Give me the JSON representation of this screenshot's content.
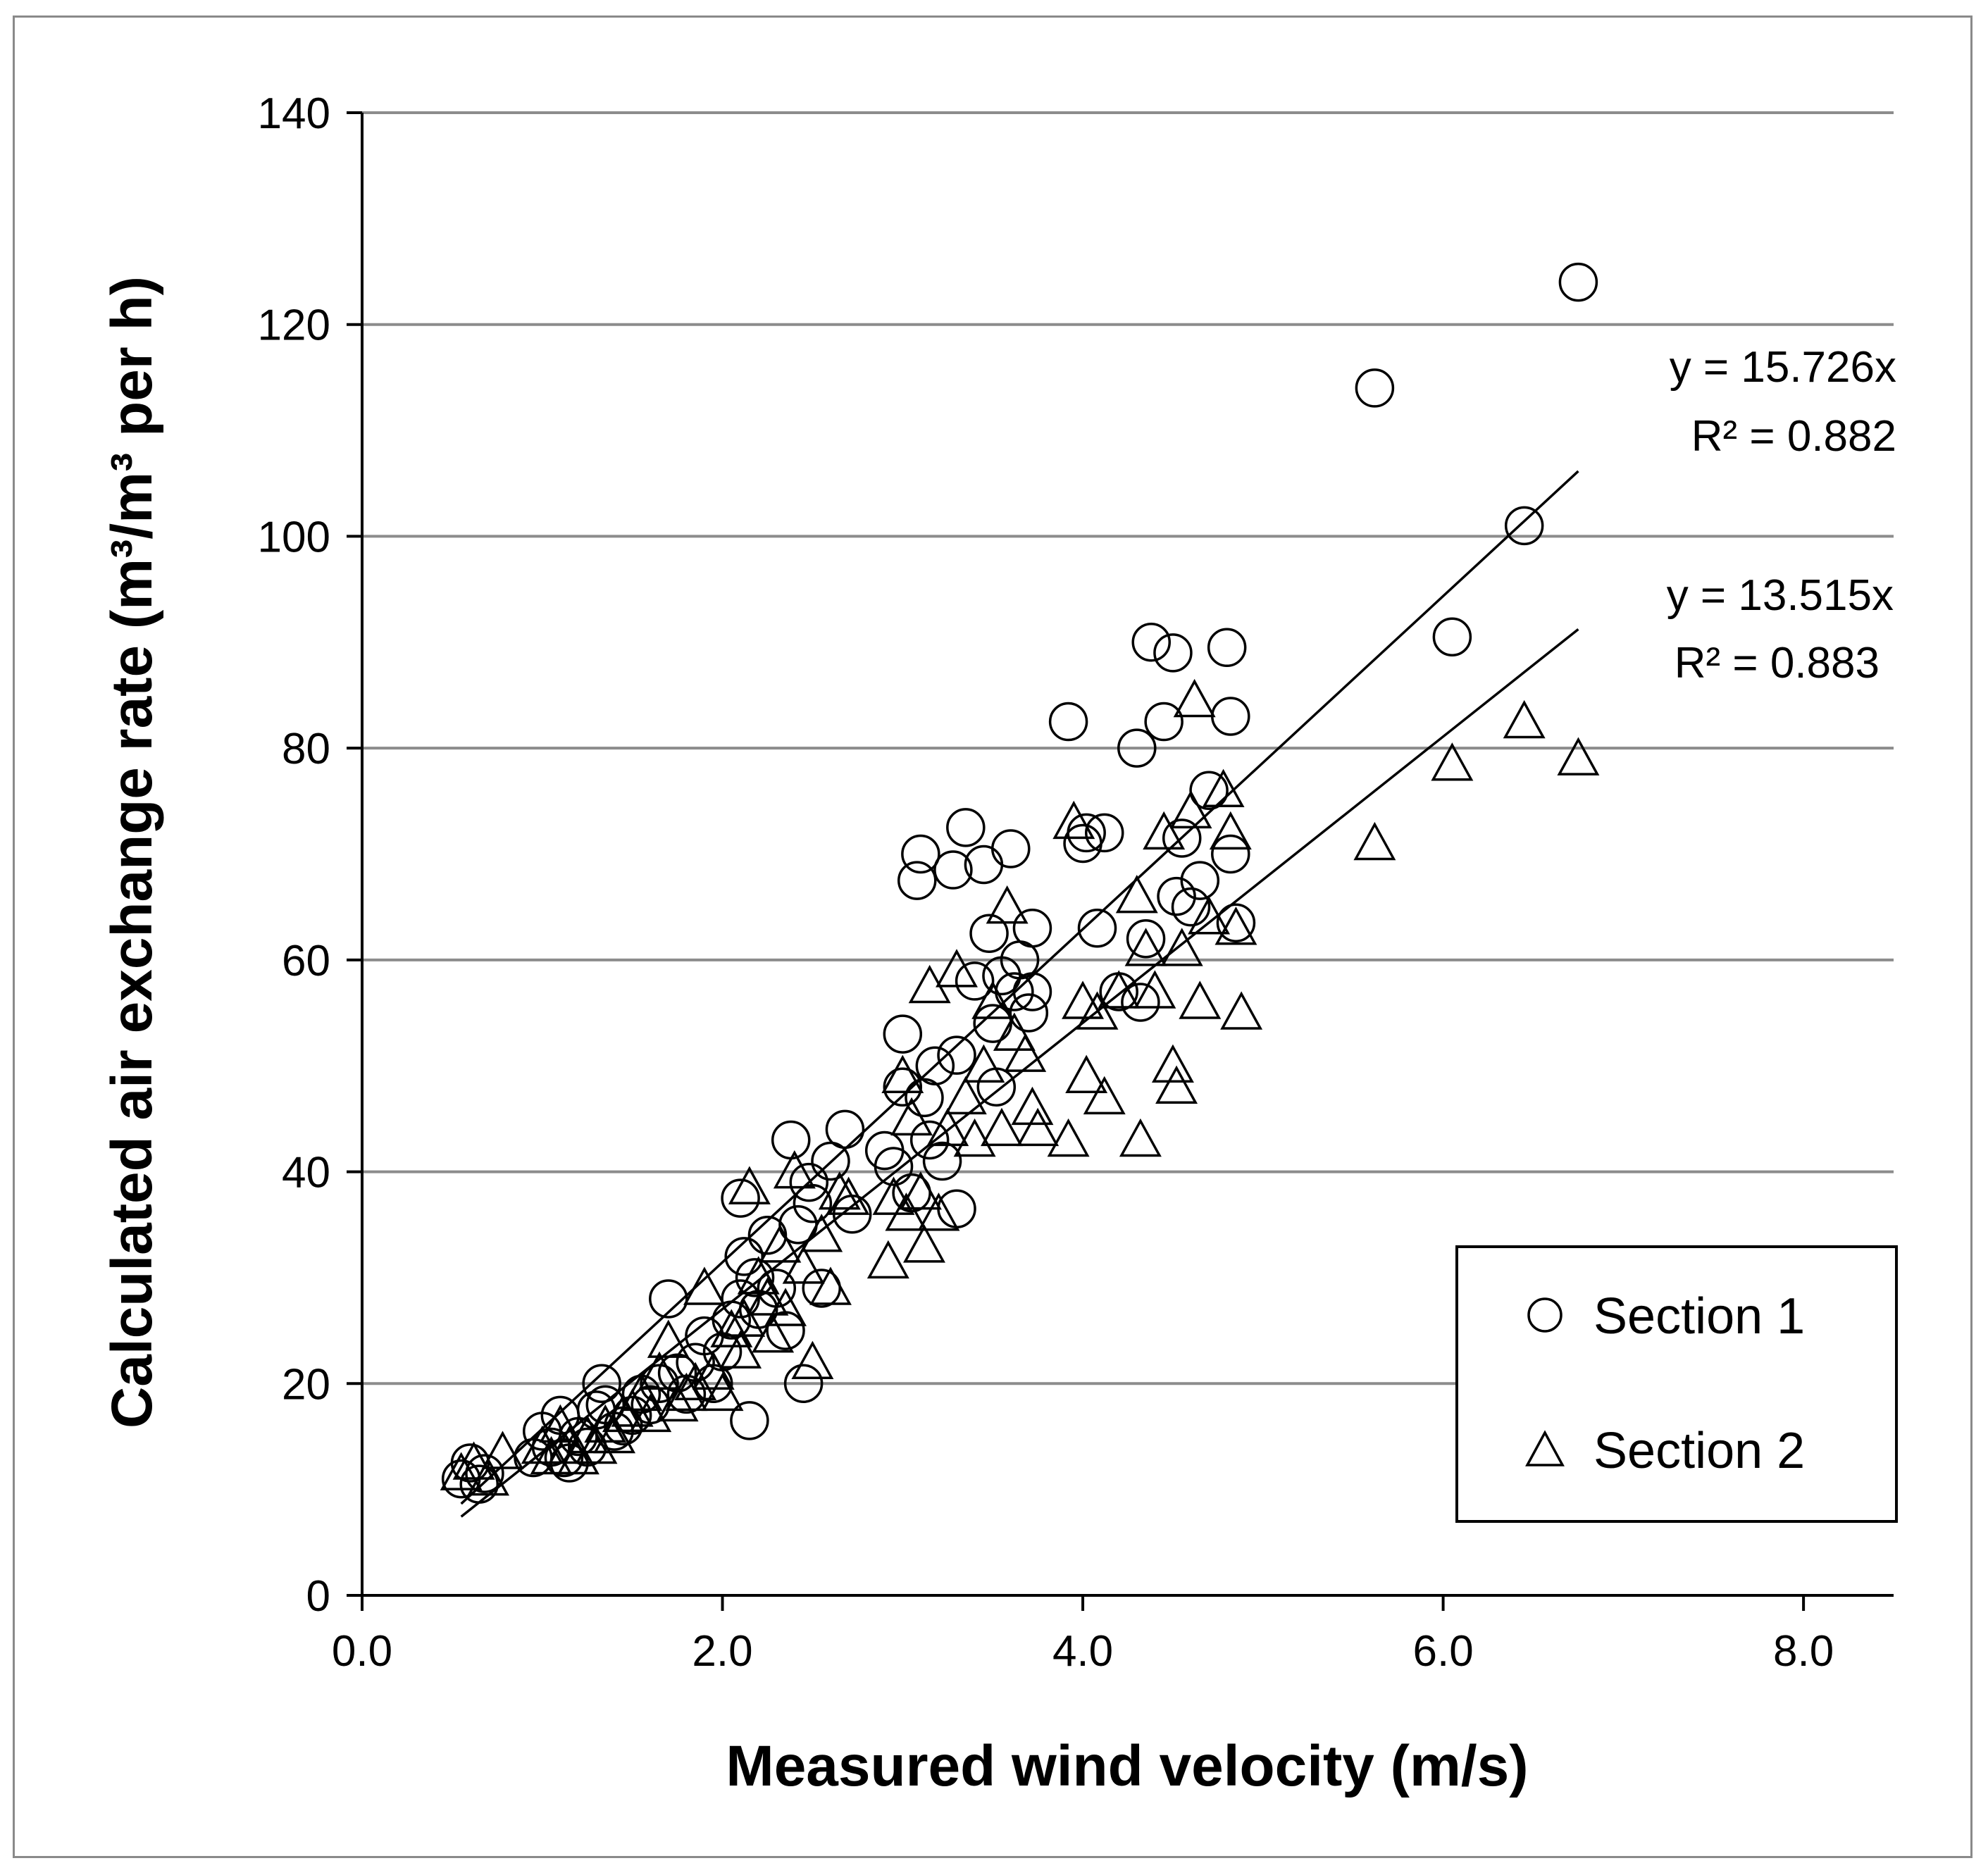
{
  "chart_data": {
    "type": "scatter",
    "title": "",
    "xlabel": "Measured wind velocity (m/s)",
    "ylabel": "Calculated air exchange rate (m³/m³ per h)",
    "xlim": [
      0,
      8.5
    ],
    "ylim": [
      0,
      140
    ],
    "x_ticks": [
      0,
      2,
      4,
      6,
      8
    ],
    "x_tick_labels": [
      "0.0",
      "2.0",
      "4.0",
      "6.0",
      "8.0"
    ],
    "y_ticks": [
      0,
      20,
      40,
      60,
      80,
      100,
      120,
      140
    ],
    "y_tick_labels": [
      "0",
      "20",
      "40",
      "60",
      "80",
      "100",
      "120",
      "140"
    ],
    "grid": "horizontal",
    "legend_position": "bottom-right",
    "series": [
      {
        "name": "Section 1",
        "marker": "circle",
        "trendline": {
          "slope": 15.726,
          "x_range": [
            0.55,
            6.75
          ],
          "equation": "y = 15.726x",
          "r2": "R² = 0.882"
        },
        "points": [
          [
            0.55,
            11
          ],
          [
            0.6,
            12.5
          ],
          [
            0.65,
            10.5
          ],
          [
            0.68,
            11.5
          ],
          [
            0.95,
            13
          ],
          [
            1.0,
            15.5
          ],
          [
            1.05,
            14
          ],
          [
            1.1,
            17
          ],
          [
            1.12,
            13
          ],
          [
            1.15,
            12.5
          ],
          [
            1.2,
            15
          ],
          [
            1.25,
            14
          ],
          [
            1.3,
            17.5
          ],
          [
            1.33,
            20
          ],
          [
            1.35,
            18
          ],
          [
            1.4,
            15.5
          ],
          [
            1.45,
            16
          ],
          [
            1.5,
            17
          ],
          [
            1.55,
            19
          ],
          [
            1.6,
            18
          ],
          [
            1.65,
            20
          ],
          [
            1.7,
            28
          ],
          [
            1.75,
            21
          ],
          [
            1.8,
            19
          ],
          [
            1.85,
            22
          ],
          [
            1.9,
            24.5
          ],
          [
            1.95,
            20
          ],
          [
            2.0,
            23
          ],
          [
            2.05,
            26
          ],
          [
            2.1,
            28
          ],
          [
            2.1,
            37.5
          ],
          [
            2.12,
            32
          ],
          [
            2.15,
            16.5
          ],
          [
            2.18,
            30
          ],
          [
            2.2,
            27
          ],
          [
            2.25,
            34
          ],
          [
            2.3,
            29
          ],
          [
            2.35,
            25
          ],
          [
            2.38,
            43
          ],
          [
            2.42,
            35
          ],
          [
            2.45,
            20
          ],
          [
            2.48,
            39
          ],
          [
            2.5,
            37
          ],
          [
            2.55,
            29
          ],
          [
            2.6,
            41
          ],
          [
            2.68,
            44
          ],
          [
            2.72,
            36
          ],
          [
            2.9,
            42
          ],
          [
            2.95,
            40.5
          ],
          [
            3.0,
            48
          ],
          [
            3.0,
            53
          ],
          [
            3.05,
            38
          ],
          [
            3.08,
            67.5
          ],
          [
            3.1,
            70
          ],
          [
            3.12,
            47
          ],
          [
            3.15,
            43
          ],
          [
            3.18,
            50
          ],
          [
            3.22,
            41
          ],
          [
            3.28,
            68.5
          ],
          [
            3.3,
            51
          ],
          [
            3.3,
            36.5
          ],
          [
            3.35,
            72.5
          ],
          [
            3.4,
            58
          ],
          [
            3.45,
            69
          ],
          [
            3.48,
            62.5
          ],
          [
            3.5,
            54
          ],
          [
            3.52,
            48
          ],
          [
            3.55,
            58.5
          ],
          [
            3.6,
            70.5
          ],
          [
            3.62,
            57
          ],
          [
            3.65,
            60
          ],
          [
            3.7,
            55
          ],
          [
            3.72,
            63
          ],
          [
            3.72,
            57
          ],
          [
            3.92,
            82.5
          ],
          [
            4.0,
            71
          ],
          [
            4.02,
            72
          ],
          [
            4.08,
            63
          ],
          [
            4.12,
            72
          ],
          [
            4.2,
            57
          ],
          [
            4.3,
            80
          ],
          [
            4.32,
            56
          ],
          [
            4.35,
            62
          ],
          [
            4.38,
            90
          ],
          [
            4.45,
            82.5
          ],
          [
            4.5,
            89
          ],
          [
            4.52,
            66
          ],
          [
            4.55,
            71.5
          ],
          [
            4.6,
            65
          ],
          [
            4.65,
            67.5
          ],
          [
            4.7,
            76
          ],
          [
            4.8,
            89.5
          ],
          [
            4.82,
            83
          ],
          [
            4.82,
            70
          ],
          [
            4.85,
            63.5
          ],
          [
            5.62,
            114
          ],
          [
            6.05,
            90.5
          ],
          [
            6.45,
            101
          ],
          [
            6.75,
            124
          ]
        ]
      },
      {
        "name": "Section 2",
        "marker": "triangle",
        "trendline": {
          "slope": 13.515,
          "x_range": [
            0.55,
            6.75
          ],
          "equation": "y = 13.515x",
          "r2": "R² = 0.883"
        },
        "points": [
          [
            0.55,
            11.5
          ],
          [
            0.62,
            12.5
          ],
          [
            0.7,
            11
          ],
          [
            0.78,
            13.5
          ],
          [
            1.0,
            14
          ],
          [
            1.05,
            13
          ],
          [
            1.1,
            16
          ],
          [
            1.15,
            14
          ],
          [
            1.2,
            13
          ],
          [
            1.25,
            15
          ],
          [
            1.3,
            14
          ],
          [
            1.35,
            16
          ],
          [
            1.4,
            15
          ],
          [
            1.45,
            17
          ],
          [
            1.5,
            17.5
          ],
          [
            1.55,
            19
          ],
          [
            1.6,
            17
          ],
          [
            1.65,
            21
          ],
          [
            1.7,
            24
          ],
          [
            1.75,
            18
          ],
          [
            1.8,
            19
          ],
          [
            1.85,
            20
          ],
          [
            1.9,
            29
          ],
          [
            1.95,
            21
          ],
          [
            2.0,
            19
          ],
          [
            2.05,
            25
          ],
          [
            2.1,
            23
          ],
          [
            2.12,
            26
          ],
          [
            2.15,
            38.5
          ],
          [
            2.2,
            30
          ],
          [
            2.25,
            28
          ],
          [
            2.28,
            24.5
          ],
          [
            2.32,
            33
          ],
          [
            2.35,
            27
          ],
          [
            2.4,
            40
          ],
          [
            2.45,
            31
          ],
          [
            2.5,
            22
          ],
          [
            2.55,
            34
          ],
          [
            2.6,
            29
          ],
          [
            2.65,
            38
          ],
          [
            2.7,
            37.5
          ],
          [
            2.92,
            31.5
          ],
          [
            2.95,
            37.5
          ],
          [
            3.0,
            49
          ],
          [
            3.02,
            36
          ],
          [
            3.05,
            45
          ],
          [
            3.1,
            38
          ],
          [
            3.12,
            33
          ],
          [
            3.15,
            57.5
          ],
          [
            3.2,
            36
          ],
          [
            3.25,
            44
          ],
          [
            3.3,
            59
          ],
          [
            3.35,
            47
          ],
          [
            3.4,
            43
          ],
          [
            3.45,
            50
          ],
          [
            3.5,
            56
          ],
          [
            3.55,
            44
          ],
          [
            3.58,
            65
          ],
          [
            3.62,
            53
          ],
          [
            3.68,
            51
          ],
          [
            3.72,
            46
          ],
          [
            3.75,
            44
          ],
          [
            3.92,
            43
          ],
          [
            3.95,
            73
          ],
          [
            4.0,
            56
          ],
          [
            4.02,
            49
          ],
          [
            4.08,
            55
          ],
          [
            4.12,
            47
          ],
          [
            4.2,
            57
          ],
          [
            4.3,
            66
          ],
          [
            4.32,
            43
          ],
          [
            4.35,
            61
          ],
          [
            4.4,
            57
          ],
          [
            4.45,
            72
          ],
          [
            4.5,
            50
          ],
          [
            4.52,
            48
          ],
          [
            4.55,
            61
          ],
          [
            4.6,
            74
          ],
          [
            4.62,
            84.5
          ],
          [
            4.65,
            56
          ],
          [
            4.7,
            64
          ],
          [
            4.78,
            76
          ],
          [
            4.82,
            72
          ],
          [
            4.85,
            63
          ],
          [
            4.88,
            55
          ],
          [
            5.62,
            71
          ],
          [
            6.05,
            78.5
          ],
          [
            6.45,
            82.5
          ],
          [
            6.75,
            79
          ]
        ]
      }
    ]
  }
}
